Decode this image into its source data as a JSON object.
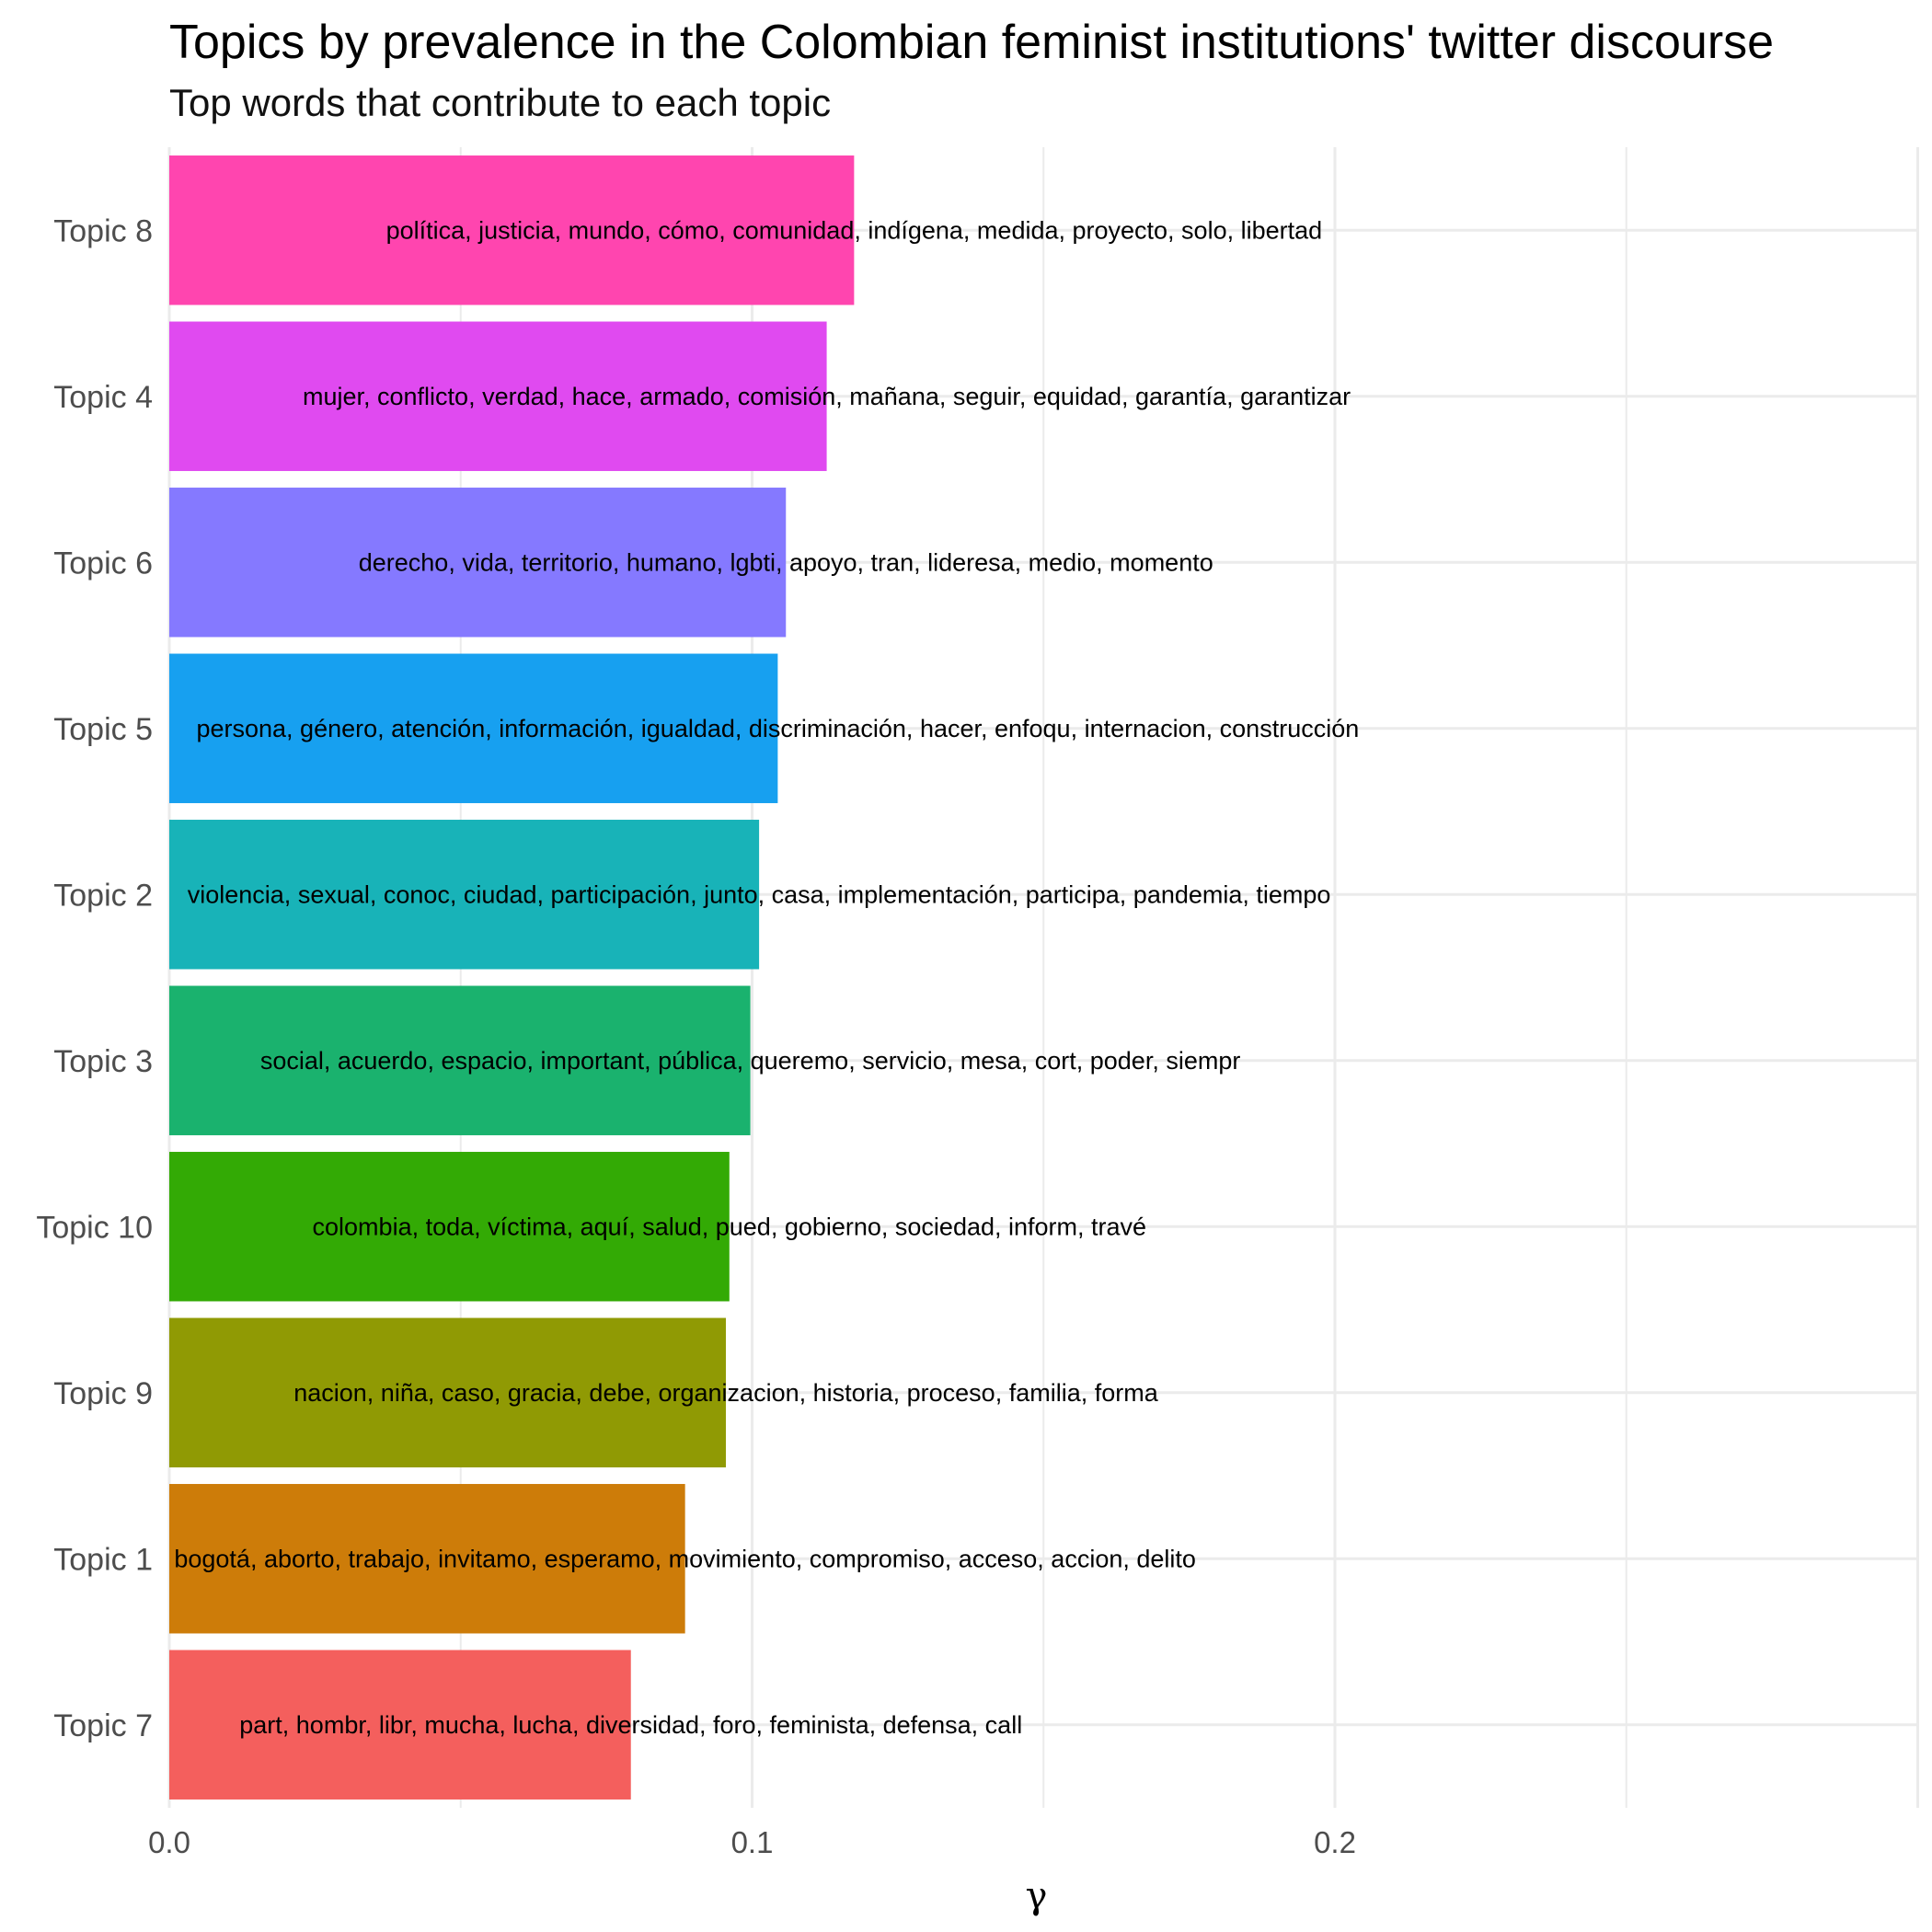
{
  "chart_data": {
    "type": "bar",
    "orientation": "horizontal",
    "title": "Topics by prevalence in the Colombian feminist institutions' twitter discourse",
    "subtitle": "Top words that contribute to each topic",
    "xlabel": "γ",
    "ylabel": "",
    "xlim": [
      0,
      0.3
    ],
    "xticks": [
      0.0,
      0.1,
      0.2
    ],
    "xtick_labels": [
      "0.0",
      "0.1",
      "0.2"
    ],
    "grid": true,
    "legend": "none",
    "bars": [
      {
        "category": "Topic 8",
        "value": 0.1175,
        "color": "#FF45AF",
        "label": "política, justicia, mundo, cómo, comunidad, indígena, medida, proyecto, solo, libertad"
      },
      {
        "category": "Topic 4",
        "value": 0.1128,
        "color": "#E04AF0",
        "label": "mujer, conflicto, verdad, hace, armado, comisión, mañana, seguir, equidad, garantía, garantizar"
      },
      {
        "category": "Topic 6",
        "value": 0.1058,
        "color": "#8579FF",
        "label": "derecho, vida, territorio, humano, lgbti, apoyo, tran, lideresa, medio, momento"
      },
      {
        "category": "Topic 5",
        "value": 0.1044,
        "color": "#17A0F0",
        "label": "persona, género, atención, información, igualdad, discriminación, hacer, enfoqu, internacion, construcción"
      },
      {
        "category": "Topic 2",
        "value": 0.1012,
        "color": "#18B3B8",
        "label": "violencia, sexual, conoc, ciudad, participación, junto, casa, implementación, participa, pandemia, tiempo"
      },
      {
        "category": "Topic 3",
        "value": 0.0997,
        "color": "#1AB26E",
        "label": "social, acuerdo, espacio, important, pública, queremo, servicio, mesa, cort, poder, siempr"
      },
      {
        "category": "Topic 10",
        "value": 0.0961,
        "color": "#33AA05",
        "label": "colombia, toda, víctima, aquí, salud, pued, gobierno, sociedad, inform, travé"
      },
      {
        "category": "Topic 9",
        "value": 0.0955,
        "color": "#909A04",
        "label": "nacion, niña, caso, gracia, debe, organizacion, historia, proceso, familia, forma"
      },
      {
        "category": "Topic 1",
        "value": 0.0885,
        "color": "#CD7C09",
        "label": "bogotá, aborto, trabajo, invitamo, esperamo, movimiento, compromiso, acceso, accion, delito"
      },
      {
        "category": "Topic 7",
        "value": 0.0792,
        "color": "#F45F5D",
        "label": "part, hombr, libr, mucha, lucha, diversidad, foro, feminista, defensa, call"
      }
    ]
  }
}
